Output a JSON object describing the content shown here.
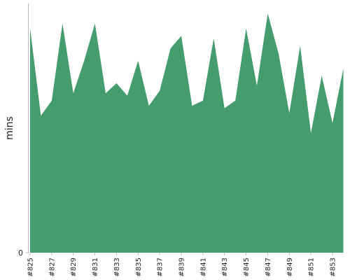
{
  "chart_data": {
    "type": "area",
    "y_label": "mins",
    "categories": [
      "#825",
      null,
      "#827",
      null,
      "#829",
      null,
      "#831",
      null,
      "#833",
      null,
      "#835",
      null,
      "#837",
      null,
      "#839",
      null,
      "#841",
      null,
      "#843",
      null,
      "#845",
      null,
      "#847",
      null,
      "#849",
      null,
      "#851",
      null,
      "#853",
      null
    ],
    "values": [
      9.0,
      5.5,
      6.1,
      9.2,
      6.4,
      7.7,
      9.2,
      6.4,
      6.8,
      6.3,
      7.7,
      5.9,
      6.5,
      8.2,
      8.7,
      5.9,
      6.1,
      8.6,
      5.8,
      6.1,
      9.0,
      6.7,
      9.6,
      8.0,
      5.6,
      8.3,
      4.8,
      7.1,
      5.2,
      7.4
    ],
    "color": "#459c6c",
    "ylim": [
      0,
      10
    ],
    "yticks": [
      0
    ]
  }
}
